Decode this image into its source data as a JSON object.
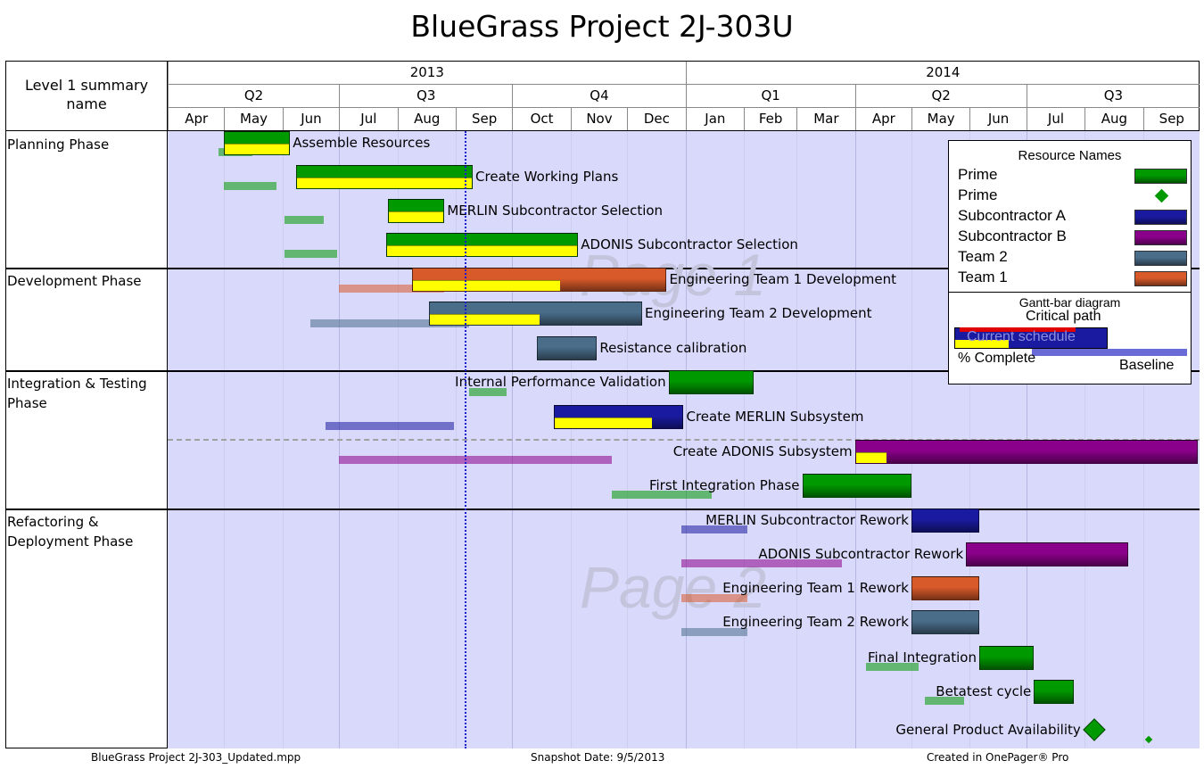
{
  "title": "BlueGrass Project 2J-303U",
  "row_header": "Level 1 summary name",
  "footer": {
    "file": "BlueGrass Project 2J-303_Updated.mpp",
    "snapshot": "Snapshot Date: 9/5/2013",
    "created": "Created in OnePager® Pro"
  },
  "watermarks": [
    "Page 1",
    "Page 2"
  ],
  "colors": {
    "prime": "#009900",
    "subcontractor_a": "#1a1aa0",
    "subcontractor_b": "#8a008a",
    "team_2": "#4a6d8a",
    "team_1": "#d85a2a",
    "progress": "#ffff00",
    "plot_bg": "#d9d9fb",
    "status_line": "#1a1acc"
  },
  "chart_data": {
    "type": "gantt",
    "title": "BlueGrass Project 2J-303U",
    "status_date": "2013-09-05",
    "timeline": {
      "years": [
        {
          "label": "2013",
          "start": "2013-04-01",
          "end": "2014-01-01"
        },
        {
          "label": "2014",
          "start": "2014-01-01",
          "end": "2014-10-01"
        }
      ],
      "quarters": [
        {
          "label": "Q2",
          "start": "2013-04-01",
          "end": "2013-07-01"
        },
        {
          "label": "Q3",
          "start": "2013-07-01",
          "end": "2013-10-01"
        },
        {
          "label": "Q4",
          "start": "2013-10-01",
          "end": "2014-01-01"
        },
        {
          "label": "Q1",
          "start": "2014-01-01",
          "end": "2014-04-01"
        },
        {
          "label": "Q2",
          "start": "2014-04-01",
          "end": "2014-07-01"
        },
        {
          "label": "Q3",
          "start": "2014-07-01",
          "end": "2014-10-01"
        }
      ],
      "months": [
        {
          "label": "Apr",
          "start": "2013-04-01"
        },
        {
          "label": "May",
          "start": "2013-05-01"
        },
        {
          "label": "Jun",
          "start": "2013-06-01"
        },
        {
          "label": "Jul",
          "start": "2013-07-01"
        },
        {
          "label": "Aug",
          "start": "2013-08-01"
        },
        {
          "label": "Sep",
          "start": "2013-09-01"
        },
        {
          "label": "Oct",
          "start": "2013-10-01"
        },
        {
          "label": "Nov",
          "start": "2013-11-01"
        },
        {
          "label": "Dec",
          "start": "2013-12-01"
        },
        {
          "label": "Jan",
          "start": "2014-01-01"
        },
        {
          "label": "Feb",
          "start": "2014-02-01"
        },
        {
          "label": "Mar",
          "start": "2014-03-01"
        },
        {
          "label": "Apr",
          "start": "2014-04-01"
        },
        {
          "label": "May",
          "start": "2014-05-01"
        },
        {
          "label": "Jun",
          "start": "2014-06-01"
        },
        {
          "label": "Jul",
          "start": "2014-07-01"
        },
        {
          "label": "Aug",
          "start": "2014-08-01"
        },
        {
          "label": "Sep",
          "start": "2014-09-01"
        }
      ],
      "range": [
        "2013-04-01",
        "2014-10-01"
      ]
    },
    "groups": [
      {
        "name": "Planning Phase"
      },
      {
        "name": "Development Phase"
      },
      {
        "name": "Integration & Testing Phase"
      },
      {
        "name": "Refactoring & Deployment Phase"
      }
    ],
    "tasks": [
      {
        "name": "Assemble Resources",
        "group": 0,
        "resource": "prime",
        "start": "2013-05-01",
        "end": "2013-06-05",
        "complete": 1.0,
        "baseline": [
          "2013-04-28",
          "2013-05-16"
        ],
        "label_side": "right"
      },
      {
        "name": "Create Working Plans",
        "group": 0,
        "resource": "prime",
        "start": "2013-06-08",
        "end": "2013-09-10",
        "complete": 1.0,
        "baseline": [
          "2013-05-01",
          "2013-05-29"
        ],
        "label_side": "right"
      },
      {
        "name": "MERLIN Subcontractor Selection",
        "group": 0,
        "resource": "prime",
        "start": "2013-07-27",
        "end": "2013-08-26",
        "complete": 1.0,
        "baseline": [
          "2013-06-02",
          "2013-06-23"
        ],
        "label_side": "right"
      },
      {
        "name": "ADONIS Subcontractor Selection",
        "group": 0,
        "resource": "prime",
        "start": "2013-07-26",
        "end": "2013-11-05",
        "complete": 1.0,
        "baseline": [
          "2013-06-02",
          "2013-06-30"
        ],
        "label_side": "right"
      },
      {
        "name": "Engineering Team 1 Development",
        "group": 1,
        "resource": "team_1",
        "start": "2013-08-09",
        "end": "2013-12-22",
        "complete": 0.58,
        "baseline": [
          "2013-07-01",
          "2013-08-26"
        ],
        "label_side": "right"
      },
      {
        "name": "Engineering Team 2 Development",
        "group": 1,
        "resource": "team_2",
        "start": "2013-08-18",
        "end": "2013-12-09",
        "complete": 0.52,
        "baseline": [
          "2013-06-16",
          "2013-09-08"
        ],
        "label_side": "right"
      },
      {
        "name": "Resistance calibration",
        "group": 1,
        "resource": "team_2",
        "start": "2013-10-14",
        "end": "2013-11-15",
        "complete": 0,
        "label_side": "right"
      },
      {
        "name": "Internal Performance Validation",
        "group": 2,
        "resource": "prime",
        "start": "2013-12-23",
        "end": "2014-02-06",
        "complete": 0,
        "baseline": [
          "2013-09-08",
          "2013-09-28"
        ],
        "label_side": "left"
      },
      {
        "name": "Create MERLIN Subsystem",
        "group": 2,
        "resource": "subcontractor_a",
        "start": "2013-10-23",
        "end": "2013-12-31",
        "complete": 0.76,
        "baseline": [
          "2013-06-24",
          "2013-08-31"
        ],
        "label_side": "right"
      },
      {
        "name": "Create ADONIS Subsystem",
        "group": 2,
        "resource": "subcontractor_b",
        "start": "2014-04-01",
        "end": "2014-09-30",
        "complete": 0.09,
        "baseline": [
          "2013-07-01",
          "2013-11-23"
        ],
        "label_side": "left"
      },
      {
        "name": "First Integration Phase",
        "group": 2,
        "resource": "prime",
        "start": "2014-03-04",
        "end": "2014-05-01",
        "complete": 0,
        "baseline": [
          "2013-11-23",
          "2014-01-15"
        ],
        "label_side": "left"
      },
      {
        "name": "MERLIN Subcontractor Rework",
        "group": 3,
        "resource": "subcontractor_a",
        "start": "2014-05-01",
        "end": "2014-06-06",
        "complete": 0,
        "baseline": [
          "2013-12-30",
          "2014-02-03"
        ],
        "label_side": "left"
      },
      {
        "name": "ADONIS Subcontractor Rework",
        "group": 3,
        "resource": "subcontractor_b",
        "start": "2014-05-30",
        "end": "2014-08-24",
        "complete": 0,
        "baseline": [
          "2013-12-30",
          "2014-03-25"
        ],
        "label_side": "left"
      },
      {
        "name": "Engineering Team 1 Rework",
        "group": 3,
        "resource": "team_1",
        "start": "2014-05-01",
        "end": "2014-06-06",
        "complete": 0,
        "baseline": [
          "2013-12-30",
          "2014-02-03"
        ],
        "label_side": "left"
      },
      {
        "name": "Engineering Team 2 Rework",
        "group": 3,
        "resource": "team_2",
        "start": "2014-05-01",
        "end": "2014-06-06",
        "complete": 0,
        "baseline": [
          "2013-12-30",
          "2014-02-03"
        ],
        "label_side": "left"
      },
      {
        "name": "Final Integration",
        "group": 3,
        "resource": "prime",
        "start": "2014-06-06",
        "end": "2014-07-05",
        "complete": 0,
        "baseline": [
          "2014-04-07",
          "2014-05-05"
        ],
        "label_side": "left"
      },
      {
        "name": "Betatest cycle",
        "group": 3,
        "resource": "prime",
        "start": "2014-07-05",
        "end": "2014-07-26",
        "complete": 0,
        "baseline": [
          "2014-05-08",
          "2014-05-29"
        ],
        "label_side": "left"
      },
      {
        "name": "General Product Availability",
        "group": 3,
        "resource": "prime",
        "milestone": true,
        "start": "2014-08-06",
        "baseline": [
          "2014-09-04"
        ],
        "label_side": "left"
      }
    ],
    "legend": {
      "title": "Resource Names",
      "entries": [
        {
          "name": "Prime",
          "style": "bar",
          "color": "#009900"
        },
        {
          "name": "Prime",
          "style": "milestone",
          "color": "#009900"
        },
        {
          "name": "Subcontractor A",
          "style": "bar",
          "color": "#1a1aa0"
        },
        {
          "name": "Subcontractor B",
          "style": "bar",
          "color": "#8a008a"
        },
        {
          "name": "Team 2",
          "style": "bar",
          "color": "#4a6d8a"
        },
        {
          "name": "Team 1",
          "style": "bar",
          "color": "#d85a2a"
        }
      ],
      "diagram_title": "Gantt-bar diagram",
      "diagram_labels": {
        "critical": "Critical path",
        "current": "Current schedule",
        "complete": "% Complete",
        "baseline": "Baseline"
      }
    }
  }
}
